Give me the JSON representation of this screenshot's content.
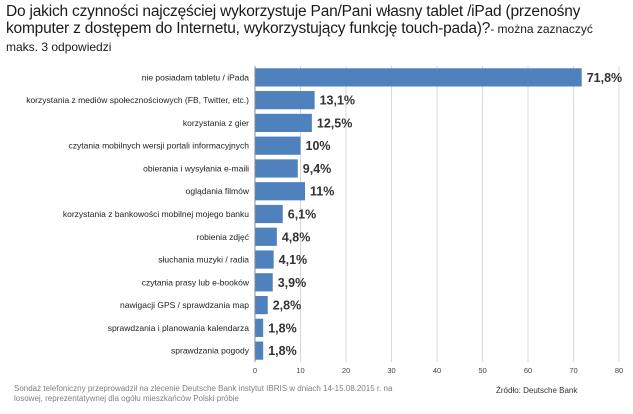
{
  "question": {
    "main": "Do jakich czynności najczęściej wykorzystuje Pan/Pani własny tablet /iPad (przenośny komputer z dostępem do Internetu, wykorzystujący funkcję touch-pada)?",
    "note": "- można zaznaczyć maks. 3 odpowiedzi"
  },
  "chart_data": {
    "type": "bar",
    "orientation": "horizontal",
    "categories": [
      "nie posiadam tabletu / iPada",
      "korzystania z mediów społecznościowych (FB, Twitter, etc.)",
      "korzystania z gier",
      "czytania mobilnych wersji portali informacyjnych",
      "obierania i wysyłania e-maili",
      "oglądania filmów",
      "korzystania z bankowości mobilnej mojego banku",
      "robienia zdjęć",
      "słuchania muzyki / radia",
      "czytania prasy lub e-booków",
      "nawigacji GPS / sprawdzania map",
      "sprawdzania i planowania kalendarza",
      "sprawdzania pogody"
    ],
    "values": [
      71.8,
      13.1,
      12.5,
      10,
      9.4,
      11,
      6.1,
      4.8,
      4.1,
      3.9,
      2.8,
      1.8,
      1.8
    ],
    "value_labels": [
      "71,8%",
      "13,1%",
      "12,5%",
      "10%",
      "9,4%",
      "11%",
      "6,1%",
      "4,8%",
      "4,1%",
      "3,9%",
      "2,8%",
      "1,8%",
      "1,8%"
    ],
    "xlim": [
      0,
      80
    ],
    "xticks": [
      0,
      10,
      20,
      30,
      40,
      50,
      60,
      70,
      80
    ],
    "grid": true,
    "bar_color": "#4f81bd"
  },
  "footnote": "Sondaż telefoniczny przeprowadził na zlecenie Deutsche Bank instytut IBRIS w dniach 14-15.08.2015 r. na losowej, reprezentatywnej dla ogółu mieszkańców Polski próbie",
  "source": "Źródło: Deutsche Bank"
}
